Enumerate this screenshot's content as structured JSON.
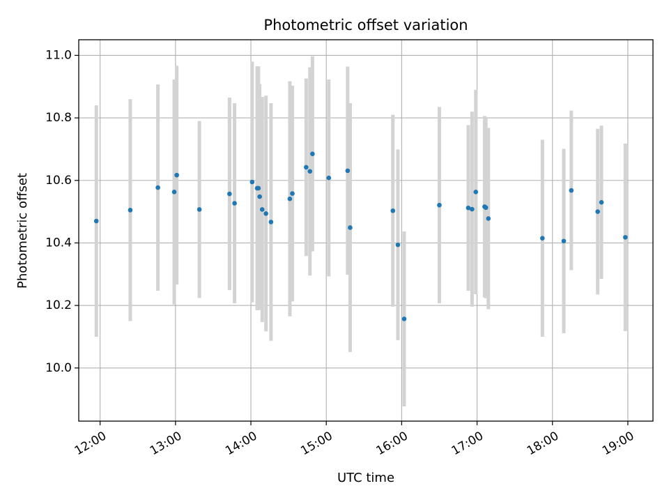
{
  "chart_data": {
    "type": "scatter",
    "title": "Photometric offset variation",
    "xlabel": "UTC time",
    "ylabel": "Photometric offset",
    "xlim": [
      "11:43",
      "19:20"
    ],
    "ylim": [
      9.83,
      11.05
    ],
    "x_ticks": [
      "12:00",
      "13:00",
      "14:00",
      "15:00",
      "16:00",
      "17:00",
      "18:00",
      "19:00"
    ],
    "y_ticks": [
      "10.0",
      "10.2",
      "10.4",
      "10.6",
      "10.8",
      "11.0"
    ],
    "grid": true,
    "colors": {
      "point": "#1f77b4",
      "errorbar": "#d3d3d3",
      "grid": "#b0b0b0"
    },
    "series": [
      {
        "points": [
          {
            "time": "11:57",
            "y": 10.47,
            "err": 0.37
          },
          {
            "time": "12:24",
            "y": 10.505,
            "err": 0.355
          },
          {
            "time": "12:46",
            "y": 10.577,
            "err": 0.33
          },
          {
            "time": "12:59",
            "y": 10.563,
            "err": 0.36
          },
          {
            "time": "13:01",
            "y": 10.617,
            "err": 0.35
          },
          {
            "time": "13:19",
            "y": 10.507,
            "err": 0.283
          },
          {
            "time": "13:43",
            "y": 10.557,
            "err": 0.308
          },
          {
            "time": "13:47",
            "y": 10.527,
            "err": 0.32
          },
          {
            "time": "14:01",
            "y": 10.595,
            "err": 0.385
          },
          {
            "time": "14:05",
            "y": 10.575,
            "err": 0.39
          },
          {
            "time": "14:06",
            "y": 10.575,
            "err": 0.39
          },
          {
            "time": "14:07",
            "y": 10.548,
            "err": 0.36
          },
          {
            "time": "14:09",
            "y": 10.507,
            "err": 0.36
          },
          {
            "time": "14:12",
            "y": 10.494,
            "err": 0.377
          },
          {
            "time": "14:16",
            "y": 10.467,
            "err": 0.38
          },
          {
            "time": "14:31",
            "y": 10.541,
            "err": 0.376
          },
          {
            "time": "14:33",
            "y": 10.558,
            "err": 0.345
          },
          {
            "time": "14:44",
            "y": 10.642,
            "err": 0.284
          },
          {
            "time": "14:47",
            "y": 10.629,
            "err": 0.333
          },
          {
            "time": "14:49",
            "y": 10.685,
            "err": 0.312
          },
          {
            "time": "15:02",
            "y": 10.608,
            "err": 0.315
          },
          {
            "time": "15:17",
            "y": 10.631,
            "err": 0.333
          },
          {
            "time": "15:19",
            "y": 10.449,
            "err": 0.398
          },
          {
            "time": "15:53",
            "y": 10.503,
            "err": 0.307
          },
          {
            "time": "15:57",
            "y": 10.394,
            "err": 0.305
          },
          {
            "time": "16:02",
            "y": 10.157,
            "err": 0.28
          },
          {
            "time": "16:30",
            "y": 10.521,
            "err": 0.314
          },
          {
            "time": "16:53",
            "y": 10.512,
            "err": 0.265
          },
          {
            "time": "16:56",
            "y": 10.508,
            "err": 0.312
          },
          {
            "time": "16:59",
            "y": 10.563,
            "err": 0.327
          },
          {
            "time": "17:06",
            "y": 10.516,
            "err": 0.29
          },
          {
            "time": "17:07",
            "y": 10.513,
            "err": 0.29
          },
          {
            "time": "17:09",
            "y": 10.478,
            "err": 0.29
          },
          {
            "time": "17:52",
            "y": 10.415,
            "err": 0.315
          },
          {
            "time": "18:09",
            "y": 10.406,
            "err": 0.295
          },
          {
            "time": "18:15",
            "y": 10.568,
            "err": 0.255
          },
          {
            "time": "18:36",
            "y": 10.5,
            "err": 0.265
          },
          {
            "time": "18:39",
            "y": 10.53,
            "err": 0.245
          },
          {
            "time": "18:58",
            "y": 10.418,
            "err": 0.3
          }
        ]
      }
    ]
  }
}
